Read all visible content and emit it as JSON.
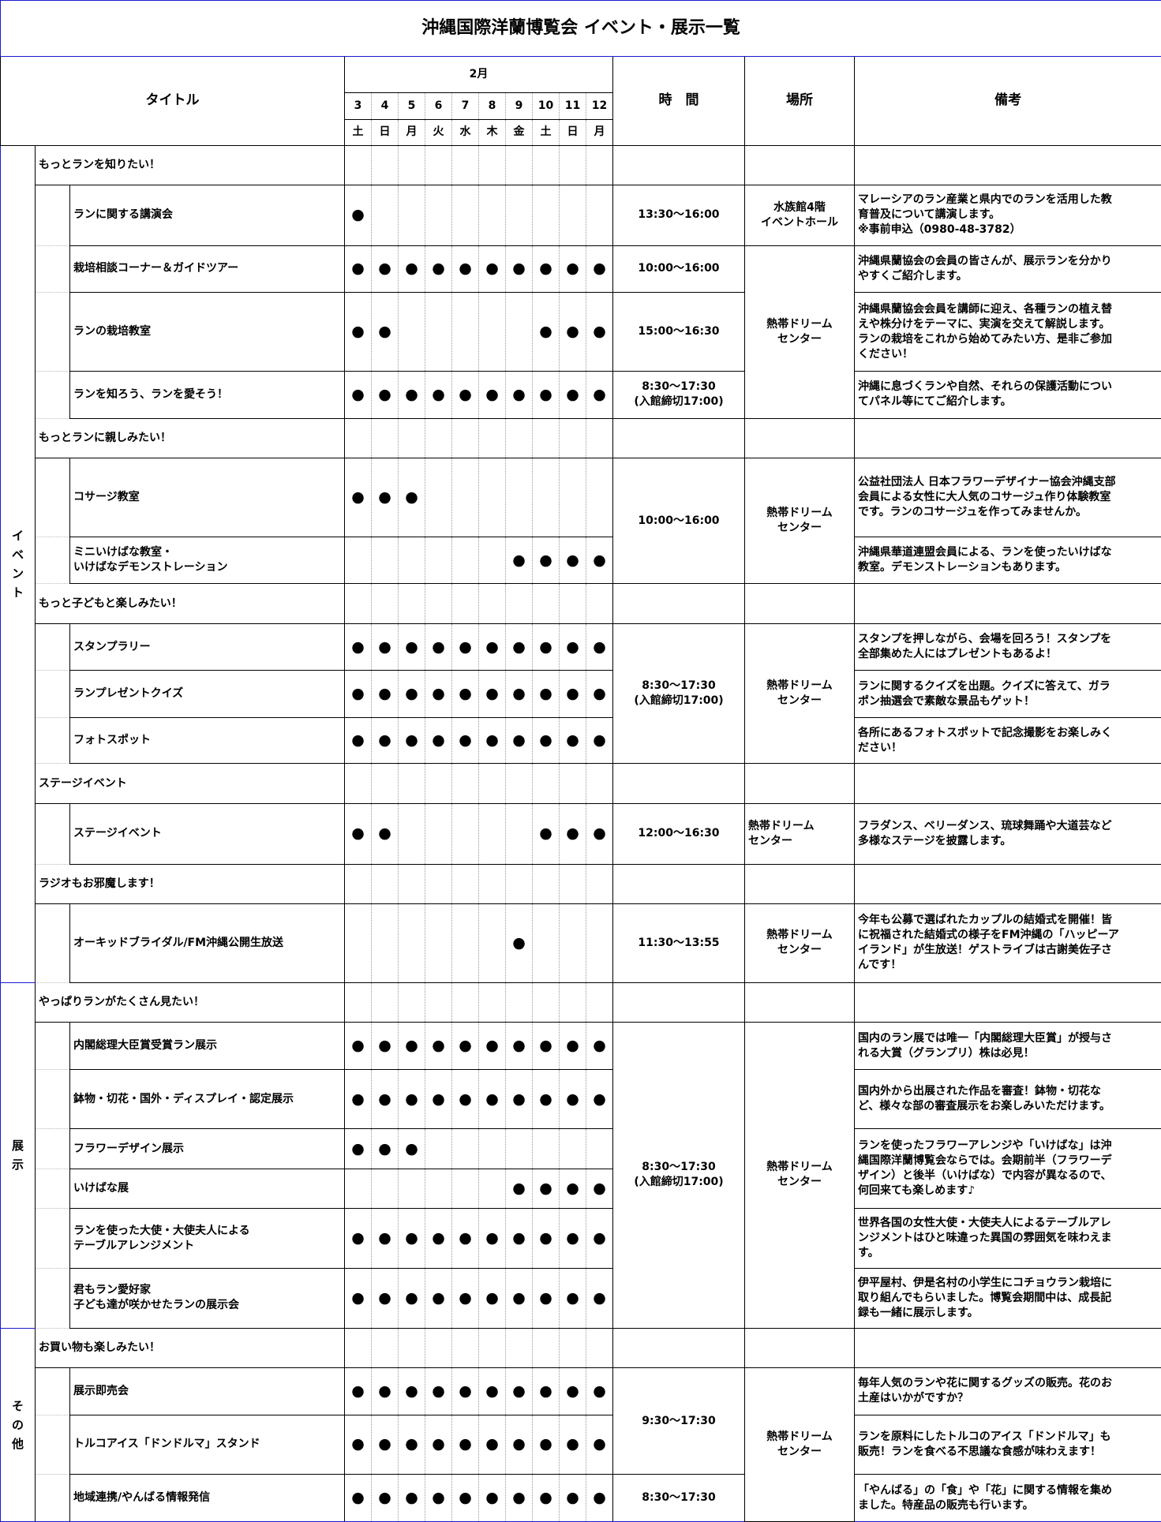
{
  "title": "沖縄国際洋蘭博覧会 イベント・展示一覧",
  "headers": {
    "title_col": "タイトル",
    "month": "2月",
    "days": [
      "3",
      "4",
      "5",
      "6",
      "7",
      "8",
      "9",
      "10",
      "11",
      "12"
    ],
    "weekdays": [
      "土",
      "日",
      "月",
      "火",
      "水",
      "木",
      "金",
      "土",
      "日",
      "月"
    ],
    "time_col": "時　間",
    "place_col": "場所",
    "note_col": "備考"
  },
  "categories": {
    "event": "イベント",
    "exhibit": "展示",
    "other": "その他"
  },
  "sections": [
    {
      "label": "もっとランを知りたい！",
      "rows": [
        {
          "title": [
            "ランに関する講演会"
          ],
          "days": [
            1,
            0,
            0,
            0,
            0,
            0,
            0,
            0,
            0,
            0
          ],
          "time": [
            "13:30～16:00"
          ],
          "place": [
            "水族館4階",
            "イベントホール"
          ],
          "note": [
            "マレーシアのラン産業と県内でのランを活用した教",
            "育普及について講演します。",
            "※事前申込（0980-48-3782）"
          ]
        },
        {
          "title": [
            "栽培相談コーナー＆ガイドツアー"
          ],
          "days": [
            1,
            1,
            1,
            1,
            1,
            1,
            1,
            1,
            1,
            1
          ],
          "time": [
            "10:00～16:00"
          ],
          "note": [
            "沖縄県蘭協会の会員の皆さんが、展示ランを分かり",
            "やすくご紹介します。"
          ]
        },
        {
          "title": [
            "ランの栽培教室"
          ],
          "days": [
            1,
            1,
            0,
            0,
            0,
            0,
            0,
            1,
            1,
            1
          ],
          "time": [
            "15:00～16:30"
          ],
          "note": [
            "沖縄県蘭協会会員を講師に迎え、各種ランの植え替",
            "えや株分けをテーマに、実演を交えて解説します。",
            "ランの栽培をこれから始めてみたい方、是非ご参加",
            "ください！"
          ]
        },
        {
          "title": [
            "ランを知ろう、ランを愛そう！"
          ],
          "days": [
            1,
            1,
            1,
            1,
            1,
            1,
            1,
            1,
            1,
            1
          ],
          "time": [
            "8:30～17:30",
            "(入館締切17:00)"
          ],
          "note": [
            "沖縄に息づくランや自然、それらの保護活動につい",
            "てパネル等にてご紹介します。"
          ]
        }
      ],
      "shared_place": [
        "熱帯ドリーム",
        "センター"
      ]
    },
    {
      "label": "もっとランに親しみたい！",
      "rows": [
        {
          "title": [
            "コサージ教室"
          ],
          "days": [
            1,
            1,
            1,
            0,
            0,
            0,
            0,
            0,
            0,
            0
          ],
          "note": [
            "公益社団法人 日本フラワーデザイナー協会沖縄支部",
            "会員による女性に大人気のコサージュ作り体験教室",
            "です。ランのコサージュを作ってみませんか。"
          ]
        },
        {
          "title": [
            "ミニいけばな教室・",
            "いけばなデモンストレーション"
          ],
          "days": [
            0,
            0,
            0,
            0,
            0,
            0,
            1,
            1,
            1,
            1
          ],
          "note": [
            "沖縄県華道連盟会員による、ランを使ったいけばな",
            "教室。デモンストレーションもあります。"
          ]
        }
      ],
      "shared_time": [
        "10:00～16:00"
      ],
      "shared_place": [
        "熱帯ドリーム",
        "センター"
      ]
    },
    {
      "label": "もっと子どもと楽しみたい！",
      "rows": [
        {
          "title": [
            "スタンプラリー"
          ],
          "days": [
            1,
            1,
            1,
            1,
            1,
            1,
            1,
            1,
            1,
            1
          ],
          "note": [
            "スタンプを押しながら、会場を回ろう！スタンプを",
            "全部集めた人にはプレゼントもあるよ！"
          ]
        },
        {
          "title": [
            "ランプレゼントクイズ"
          ],
          "days": [
            1,
            1,
            1,
            1,
            1,
            1,
            1,
            1,
            1,
            1
          ],
          "note": [
            "ランに関するクイズを出題。クイズに答えて、ガラ",
            "ポン抽選会で素敵な景品もゲット！"
          ]
        },
        {
          "title": [
            "フォトスポット"
          ],
          "days": [
            1,
            1,
            1,
            1,
            1,
            1,
            1,
            1,
            1,
            1
          ],
          "note": [
            "各所にあるフォトスポットで記念撮影をお楽しみく",
            "ださい！"
          ]
        }
      ],
      "shared_time": [
        "8:30～17:30",
        "(入館締切17:00)"
      ],
      "shared_place": [
        "熱帯ドリーム",
        "センター"
      ]
    },
    {
      "label": "ステージイベント",
      "rows": [
        {
          "title": [
            "ステージイベント"
          ],
          "days": [
            1,
            1,
            0,
            0,
            0,
            0,
            0,
            1,
            1,
            1
          ],
          "time": [
            "12:00～16:30"
          ],
          "place": [
            "熱帯ドリーム",
            "センター"
          ],
          "note": [
            "フラダンス、ベリーダンス、琉球舞踊や大道芸など",
            "多様なステージを披露します。"
          ]
        }
      ]
    },
    {
      "label": "ラジオもお邪魔します！",
      "rows": [
        {
          "title": [
            "オーキッドブライダル/FM沖縄公開生放送"
          ],
          "days": [
            0,
            0,
            0,
            0,
            0,
            0,
            1,
            0,
            0,
            0
          ],
          "time": [
            "11:30～13:55"
          ],
          "place": [
            "熱帯ドリーム",
            "センター"
          ],
          "note": [
            "今年も公募で選ばれたカップルの結婚式を開催！皆",
            "に祝福された結婚式の様子をFM沖縄の「ハッピーア",
            "イランド」が生放送！ゲストライブは古謝美佐子さ",
            "んです！"
          ]
        }
      ]
    },
    {
      "label": "やっぱりランがたくさん見たい！",
      "rows": [
        {
          "title": [
            "内閣総理大臣賞受賞ラン展示"
          ],
          "days": [
            1,
            1,
            1,
            1,
            1,
            1,
            1,
            1,
            1,
            1
          ],
          "note": [
            "国内のラン展では唯一「内閣総理大臣賞」が授与さ",
            "れる大賞（グランプリ）株は必見！"
          ]
        },
        {
          "title": [
            "鉢物・切花・国外・ディスプレイ・認定展示"
          ],
          "days": [
            1,
            1,
            1,
            1,
            1,
            1,
            1,
            1,
            1,
            1
          ],
          "note": [
            "国内外から出展された作品を審査！鉢物・切花な",
            "ど、様々な部の審査展示をお楽しみいただけます。"
          ]
        },
        {
          "title": [
            "フラワーデザイン展示"
          ],
          "days": [
            1,
            1,
            1,
            0,
            0,
            0,
            0,
            0,
            0,
            0
          ]
        },
        {
          "title": [
            "いけばな展"
          ],
          "days": [
            0,
            0,
            0,
            0,
            0,
            0,
            1,
            1,
            1,
            1
          ]
        },
        {
          "title": [
            "ランを使った大使・大使夫人による",
            "テーブルアレンジメント"
          ],
          "days": [
            1,
            1,
            1,
            1,
            1,
            1,
            1,
            1,
            1,
            1
          ],
          "note": [
            "世界各国の女性大使・大使夫人によるテーブルアレ",
            "ンジメントはひと味違った異国の雰囲気を味わえま",
            "す。"
          ]
        },
        {
          "title": [
            "君もラン愛好家",
            "子ども達が咲かせたランの展示会"
          ],
          "days": [
            1,
            1,
            1,
            1,
            1,
            1,
            1,
            1,
            1,
            1
          ],
          "note": [
            "伊平屋村、伊是名村の小学生にコチョウラン栽培に",
            "取り組んでもらいました。博覧会期間中は、成長記",
            "録も一緒に展示します。"
          ]
        }
      ],
      "shared_note_flower": [
        "ランを使ったフラワーアレンジや「いけばな」は沖",
        "縄国際洋蘭博覧会ならでは。会期前半（フラワーデ",
        "ザイン）と後半（いけばな）で内容が異なるので、",
        "何回来ても楽しめます♪"
      ],
      "shared_time": [
        "8:30～17:30",
        "(入館締切17:00)"
      ],
      "shared_place": [
        "熱帯ドリーム",
        "センター"
      ]
    },
    {
      "label": "お買い物も楽しみたい！",
      "rows": [
        {
          "title": [
            "展示即売会"
          ],
          "days": [
            1,
            1,
            1,
            1,
            1,
            1,
            1,
            1,
            1,
            1
          ],
          "note": [
            "毎年人気のランや花に関するグッズの販売。花のお",
            "土産はいかがですか？"
          ]
        },
        {
          "title": [
            "トルコアイス「ドンドルマ」スタンド"
          ],
          "days": [
            1,
            1,
            1,
            1,
            1,
            1,
            1,
            1,
            1,
            1
          ],
          "note": [
            "ランを原料にしたトルコのアイス「ドンドルマ」も",
            "販売！ランを食べる不思議な食感が味わえます！"
          ]
        },
        {
          "title": [
            "地域連携/やんばる情報発信"
          ],
          "days": [
            1,
            1,
            1,
            1,
            1,
            1,
            1,
            1,
            1,
            1
          ],
          "time": [
            "8:30～17:30"
          ],
          "note": [
            "「やんばる」の「食」や「花」に関する情報を集め",
            "ました。特産品の販売も行います。"
          ]
        }
      ],
      "shared_time": [
        "9:30～17:30"
      ],
      "shared_place": [
        "熱帯ドリーム",
        "センター"
      ]
    }
  ],
  "dot_symbol": "●"
}
